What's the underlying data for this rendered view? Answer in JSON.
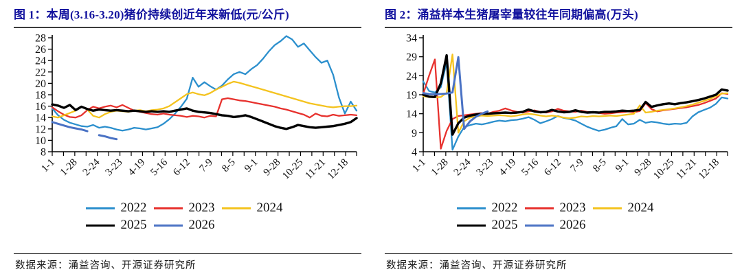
{
  "page": {
    "background": "#ffffff",
    "source_note": "数据来源：涌益咨询、开源证券研究所",
    "title_color": "#12129e"
  },
  "chart_data": [
    {
      "type": "line",
      "title": "图 1：本周(3.16-3.20)猪价持续创近年来新低(元/公斤)",
      "unit": "元/公斤",
      "xlabel": "",
      "ylabel": "",
      "ylim": [
        8,
        28
      ],
      "y_step": 2,
      "grid": false,
      "legend_position": "bottom",
      "x_tick_labels": [
        "1-1",
        "1-28",
        "2-24",
        "3-23",
        "4-19",
        "5-16",
        "6-12",
        "7-9",
        "8-5",
        "9-1",
        "9-28",
        "10-25",
        "11-21",
        "12-18"
      ],
      "x_tick_interval_days": 27,
      "point_interval_days": 7,
      "year_days": 364,
      "series": [
        {
          "name": "2022",
          "color": "#2b8fcd",
          "width": 2.3,
          "values": [
            15.6,
            14.4,
            13.6,
            13.1,
            12.8,
            12.5,
            12.4,
            12.7,
            12.2,
            12.4,
            12.2,
            11.9,
            11.7,
            11.9,
            12.2,
            12.1,
            11.9,
            12.1,
            12.3,
            12.9,
            13.7,
            14.7,
            15.9,
            17.3,
            21.0,
            19.4,
            20.2,
            19.5,
            18.9,
            19.6,
            20.7,
            21.6,
            22.0,
            21.6,
            22.5,
            23.2,
            24.3,
            25.6,
            26.7,
            27.4,
            28.3,
            27.7,
            26.4,
            27.0,
            25.8,
            24.6,
            23.6,
            24.0,
            21.5,
            17.5,
            14.7,
            16.8,
            15.2
          ]
        },
        {
          "name": "2023",
          "color": "#e7312d",
          "width": 2.3,
          "values": [
            15.8,
            15.1,
            14.5,
            14.1,
            14.0,
            14.4,
            15.3,
            15.9,
            15.6,
            15.9,
            16.1,
            15.8,
            16.2,
            15.7,
            15.2,
            15.0,
            14.8,
            14.6,
            14.5,
            14.7,
            14.5,
            14.4,
            14.3,
            14.1,
            14.3,
            14.2,
            14.0,
            14.3,
            14.2,
            17.2,
            17.4,
            17.2,
            17.0,
            16.9,
            16.7,
            16.5,
            16.3,
            16.1,
            15.9,
            15.6,
            15.4,
            15.1,
            14.8,
            14.5,
            14.0,
            14.7,
            14.3,
            14.2,
            14.5,
            14.3,
            14.4,
            14.5,
            14.4
          ]
        },
        {
          "name": "2024",
          "color": "#f4c31f",
          "width": 2.3,
          "values": [
            14.2,
            14.0,
            14.4,
            14.8,
            15.2,
            15.9,
            15.4,
            14.3,
            14.0,
            14.6,
            15.0,
            15.2,
            15.1,
            15.0,
            15.2,
            15.3,
            15.1,
            15.3,
            15.4,
            15.6,
            16.0,
            16.7,
            17.4,
            18.1,
            18.4,
            18.1,
            17.9,
            18.3,
            18.9,
            19.4,
            19.9,
            20.3,
            20.1,
            19.8,
            19.5,
            19.2,
            18.9,
            18.6,
            18.3,
            18.0,
            17.7,
            17.4,
            17.1,
            16.8,
            16.5,
            16.3,
            16.1,
            15.9,
            15.8,
            15.9,
            16.0,
            16.0,
            16.1
          ]
        },
        {
          "name": "2025",
          "color": "#000000",
          "width": 3.4,
          "values": [
            16.3,
            16.1,
            15.7,
            16.2,
            15.3,
            15.9,
            15.5,
            15.2,
            15.4,
            15.3,
            15.2,
            15.3,
            15.2,
            15.1,
            15.2,
            15.1,
            15.0,
            15.1,
            15.0,
            15.1,
            15.0,
            15.2,
            15.4,
            15.6,
            15.2,
            15.0,
            14.9,
            14.8,
            14.6,
            14.4,
            14.3,
            14.1,
            14.2,
            14.4,
            14.1,
            13.7,
            13.3,
            12.9,
            12.5,
            12.2,
            12.0,
            12.3,
            12.7,
            12.5,
            12.3,
            12.2,
            12.3,
            12.4,
            12.5,
            12.7,
            12.9,
            13.2,
            13.9
          ]
        },
        {
          "name": "2026",
          "color": "#4a72c4",
          "width": 3.0,
          "values": [
            13.2,
            12.9,
            12.6,
            12.3,
            12.1,
            11.9,
            11.6,
            null,
            10.9,
            10.7,
            10.4,
            10.2
          ]
        }
      ]
    },
    {
      "type": "line",
      "title": "图 2：涌益样本生猪屠宰量较往年同期偏高(万头)",
      "unit": "万头",
      "xlabel": "",
      "ylabel": "",
      "ylim": [
        4,
        34
      ],
      "y_step": 5,
      "grid": false,
      "legend_position": "bottom",
      "x_tick_labels": [
        "1-1",
        "1-28",
        "2-24",
        "3-23",
        "4-19",
        "5-16",
        "6-12",
        "7-9",
        "8-5",
        "9-1",
        "9-28",
        "10-25",
        "11-21",
        "12-18"
      ],
      "x_tick_interval_days": 27,
      "point_interval_days": 7,
      "year_days": 364,
      "series": [
        {
          "name": "2022",
          "color": "#2b8fcd",
          "width": 2.3,
          "values": [
            22.5,
            20.0,
            19.6,
            21.0,
            27.6,
            4.5,
            8.0,
            10.5,
            11.0,
            11.4,
            11.2,
            11.5,
            11.9,
            12.2,
            12.0,
            12.3,
            12.4,
            12.7,
            13.1,
            12.4,
            11.5,
            12.0,
            12.6,
            13.4,
            12.9,
            12.6,
            12.2,
            11.4,
            10.6,
            10.0,
            9.5,
            9.8,
            10.3,
            10.7,
            12.6,
            11.2,
            11.4,
            12.4,
            11.6,
            11.9,
            11.7,
            11.4,
            11.2,
            11.4,
            11.3,
            11.6,
            13.3,
            14.4,
            15.0,
            15.6,
            16.6,
            18.3,
            18.0
          ]
        },
        {
          "name": "2023",
          "color": "#e7312d",
          "width": 2.3,
          "values": [
            19.2,
            24.0,
            28.3,
            4.8,
            9.5,
            12.6,
            13.4,
            13.6,
            13.8,
            14.0,
            14.2,
            14.0,
            14.5,
            14.8,
            15.4,
            14.9,
            14.5,
            14.3,
            14.6,
            14.9,
            14.5,
            14.3,
            14.6,
            15.3,
            14.8,
            14.6,
            14.5,
            14.8,
            14.5,
            14.4,
            14.2,
            14.0,
            14.1,
            14.3,
            14.4,
            14.6,
            14.4,
            14.7,
            16.8,
            15.2,
            14.6,
            14.9,
            15.1,
            15.3,
            15.5,
            15.7,
            16.0,
            16.3,
            16.8,
            17.4,
            18.0,
            19.4,
            19.2
          ]
        },
        {
          "name": "2024",
          "color": "#f4c31f",
          "width": 2.3,
          "values": [
            18.6,
            18.4,
            18.3,
            18.4,
            19.5,
            29.6,
            9.0,
            12.0,
            13.0,
            13.3,
            13.5,
            13.4,
            13.5,
            13.6,
            13.5,
            13.3,
            13.5,
            13.8,
            14.0,
            13.8,
            13.5,
            13.3,
            13.5,
            13.3,
            13.0,
            12.8,
            13.0,
            13.3,
            13.2,
            13.4,
            13.3,
            13.4,
            13.5,
            13.4,
            13.6,
            13.8,
            14.0,
            16.2,
            14.3,
            14.5,
            14.8,
            15.0,
            15.2,
            15.4,
            15.7,
            16.0,
            16.4,
            16.9,
            17.4,
            17.9,
            18.6,
            19.3,
            19.4
          ]
        },
        {
          "name": "2025",
          "color": "#000000",
          "width": 3.4,
          "values": [
            19.0,
            18.5,
            18.4,
            22.0,
            29.4,
            8.5,
            11.5,
            13.0,
            13.5,
            13.8,
            14.0,
            14.0,
            14.1,
            14.2,
            14.3,
            14.2,
            14.3,
            14.5,
            15.1,
            14.6,
            14.4,
            14.5,
            15.0,
            14.6,
            14.4,
            14.5,
            14.9,
            14.5,
            14.3,
            14.4,
            14.3,
            14.5,
            14.5,
            14.6,
            14.8,
            14.7,
            14.8,
            15.0,
            17.1,
            15.8,
            16.2,
            16.5,
            16.7,
            16.5,
            16.8,
            17.0,
            17.3,
            17.6,
            18.0,
            18.5,
            19.0,
            20.4,
            20.1
          ]
        },
        {
          "name": "2026",
          "color": "#4a72c4",
          "width": 3.0,
          "values": [
            19.4,
            19.2,
            19.1,
            19.2,
            19.3,
            19.6,
            28.9,
            10.0,
            12.0,
            13.2,
            14.0,
            14.6
          ]
        }
      ]
    }
  ]
}
